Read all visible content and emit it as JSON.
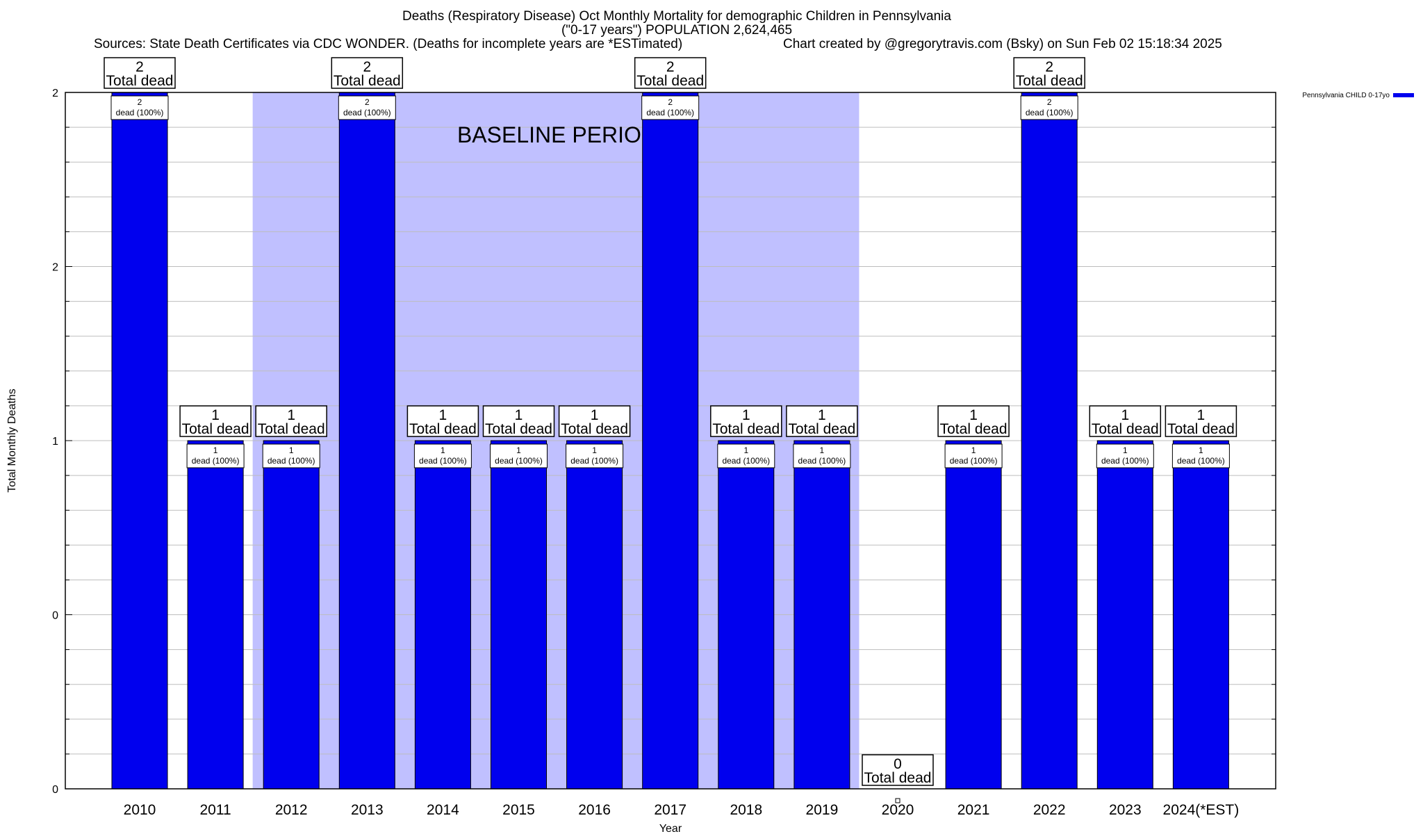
{
  "chart_data": {
    "type": "bar",
    "title": "Deaths (Respiratory Disease) Oct Monthly Mortality for demographic Children in Pennsylvania",
    "subtitle": "(\"0-17 years\") POPULATION 2,624,465",
    "sources": "Sources: State Death Certificates via CDC WONDER. (Deaths for incomplete years are *ESTimated)",
    "credit": "Chart created by @gregorytravis.com (Bsky) on Sun Feb 02 15:18:34 2025",
    "xlabel": "Year",
    "ylabel": "Total Monthly Deaths",
    "ylim": [
      0,
      2
    ],
    "yticks": [
      {
        "value": 0,
        "label": "0"
      },
      {
        "value": 0.5,
        "label": "0"
      },
      {
        "value": 1,
        "label": "1"
      },
      {
        "value": 1.5,
        "label": "2"
      },
      {
        "value": 2,
        "label": "2"
      }
    ],
    "grid": true,
    "legend": {
      "position": "top-right",
      "entries": [
        {
          "name": "Pennsylvania CHILD 0-17yo",
          "color": "#0000ee"
        }
      ]
    },
    "annotation": {
      "text": "BASELINE PERIOD",
      "from": "2012",
      "to": "2019",
      "color": "#c0c0ff"
    },
    "bar_color": "#0000ee",
    "total_label_suffix": "Total dead",
    "inner_label_suffix": "dead (100%)",
    "categories": [
      "2010",
      "2011",
      "2012",
      "2013",
      "2014",
      "2015",
      "2016",
      "2017",
      "2018",
      "2019",
      "2020",
      "2021",
      "2022",
      "2023",
      "2024(*EST)"
    ],
    "series": [
      {
        "name": "Pennsylvania CHILD 0-17yo",
        "values": [
          2,
          1,
          1,
          2,
          1,
          1,
          1,
          2,
          1,
          1,
          0,
          1,
          2,
          1,
          1
        ]
      }
    ]
  }
}
